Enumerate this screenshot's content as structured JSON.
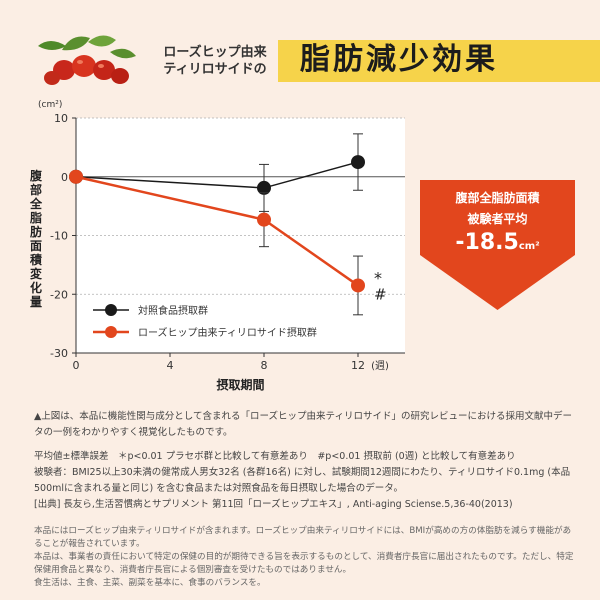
{
  "header": {
    "subtitle_line1": "ローズヒップ由来",
    "subtitle_line2": "ティリロサイドの",
    "title": "脂肪減少効果"
  },
  "chart_data": {
    "type": "line",
    "unit_label": "(cm²)",
    "ylabel": "腹部全脂肪面積変化量",
    "xlabel": "摂取期間",
    "x_unit": "(週)",
    "x": [
      0,
      4,
      8,
      12
    ],
    "x_ticks": [
      "0",
      "4",
      "8",
      "12"
    ],
    "y_ticks": [
      "10",
      "0",
      "-10",
      "-20",
      "-30"
    ],
    "xlim": [
      0,
      14
    ],
    "ylim": [
      -30,
      10
    ],
    "series": [
      {
        "name": "対照食品摂取群",
        "color": "#1a1a1a",
        "points": [
          {
            "x": 0,
            "y": 0,
            "err": 0
          },
          {
            "x": 8,
            "y": -1.9,
            "err": 4.0
          },
          {
            "x": 12,
            "y": 2.5,
            "err": 4.8
          }
        ]
      },
      {
        "name": "ローズヒップ由来ティリロサイド摂取群",
        "color": "#e2461d",
        "points": [
          {
            "x": 0,
            "y": 0,
            "err": 0
          },
          {
            "x": 8,
            "y": -7.3,
            "err": 4.6
          },
          {
            "x": 12,
            "y": -18.5,
            "err": 5.0
          }
        ]
      }
    ],
    "significance_marks": [
      "*",
      "#"
    ]
  },
  "callout": {
    "line1": "腹部全脂肪面積",
    "line2": "被験者平均",
    "value": "-18.5",
    "unit": "cm²",
    "color": "#e2461d"
  },
  "notes": {
    "line1": "▲上図は、本品に機能性関与成分として含まれる「ローズヒップ由来ティリロサイド」の研究レビューにおける採用文献中データの一例をわかりやすく視覚化したものです。",
    "line2": "平均値±標準誤差　＊p<0.01 プラセボ群と比較して有意差あり　#p<0.01 摂取前 (0週) と比較して有意差あり",
    "line3": "被験者：BMI25以上30未満の健常成人男女32名 (各群16名) に対し、試験期間12週間にわたり、ティリロサイド0.1mg (本品500mlに含まれる量と同じ) を含む食品または対照食品を毎日摂取した場合のデータ。",
    "line4": "[出典] 長友ら,生活習慣病とサプリメント 第11回「ローズヒップエキス」, Anti-aging Sciense.5,36-40(2013)"
  },
  "fine_print": {
    "line1": "本品にはローズヒップ由来ティリロサイドが含まれます。ローズヒップ由来ティリロサイドには、BMIが高めの方の体脂肪を減らす機能があることが報告されています。",
    "line2": "本品は、事業者の責任において特定の保健の目的が期待できる旨を表示するものとして、消費者庁長官に届出されたものです。ただし、特定保健用食品と異なり、消費者庁長官による個別審査を受けたものではありません。",
    "line3": "食生活は、主食、主菜、副菜を基本に、食事のバランスを。"
  }
}
